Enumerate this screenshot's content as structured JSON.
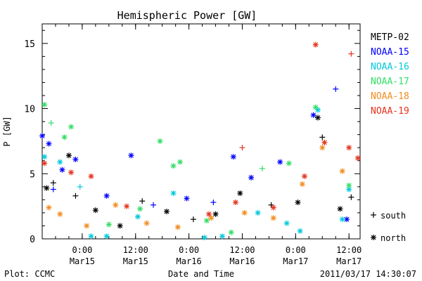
{
  "chart_data": {
    "type": "scatter",
    "title": "Hemispheric Power [GW]",
    "xlabel": "Date and Time",
    "ylabel": "P [GW]",
    "ylim": [
      0,
      16.5
    ],
    "xlim": [
      "2011-03-14 15:00",
      "2011-03-17 14:30"
    ],
    "grid": false,
    "legend_position": "right",
    "y_ticks": [
      0,
      5,
      10,
      15
    ],
    "x_ticks": [
      {
        "x": "2011-03-15 00:00",
        "label_time": "0:00",
        "label_date": "Mar15"
      },
      {
        "x": "2011-03-15 12:00",
        "label_time": "12:00",
        "label_date": "Mar15"
      },
      {
        "x": "2011-03-16 00:00",
        "label_time": "0:00",
        "label_date": "Mar16"
      },
      {
        "x": "2011-03-16 12:00",
        "label_time": "12:00",
        "label_date": "Mar16"
      },
      {
        "x": "2011-03-17 00:00",
        "label_time": "0:00",
        "label_date": "Mar17"
      },
      {
        "x": "2011-03-17 12:00",
        "label_time": "12:00",
        "label_date": "Mar17"
      }
    ],
    "symbol_legend": [
      {
        "symbol": "+",
        "label": "south"
      },
      {
        "symbol": "*",
        "label": "north"
      }
    ],
    "series": [
      {
        "name": "METP-02",
        "color": "#000000",
        "points": [
          {
            "x": "2011-03-14 16:00",
            "y": 3.9,
            "hemi": "north"
          },
          {
            "x": "2011-03-14 17:30",
            "y": 4.3,
            "hemi": "south"
          },
          {
            "x": "2011-03-14 21:00",
            "y": 6.4,
            "hemi": "north"
          },
          {
            "x": "2011-03-14 22:30",
            "y": 3.3,
            "hemi": "south"
          },
          {
            "x": "2011-03-15 03:00",
            "y": 2.2,
            "hemi": "north"
          },
          {
            "x": "2011-03-15 08:30",
            "y": 1.0,
            "hemi": "north"
          },
          {
            "x": "2011-03-15 13:30",
            "y": 2.9,
            "hemi": "south"
          },
          {
            "x": "2011-03-15 19:00",
            "y": 2.1,
            "hemi": "north"
          },
          {
            "x": "2011-03-16 01:00",
            "y": 1.5,
            "hemi": "south"
          },
          {
            "x": "2011-03-16 06:00",
            "y": 1.9,
            "hemi": "north"
          },
          {
            "x": "2011-03-16 11:30",
            "y": 3.5,
            "hemi": "north"
          },
          {
            "x": "2011-03-16 18:30",
            "y": 2.6,
            "hemi": "south"
          },
          {
            "x": "2011-03-17 00:30",
            "y": 2.8,
            "hemi": "north"
          },
          {
            "x": "2011-03-17 05:00",
            "y": 9.3,
            "hemi": "north"
          },
          {
            "x": "2011-03-17 06:00",
            "y": 7.8,
            "hemi": "south"
          },
          {
            "x": "2011-03-17 10:00",
            "y": 2.3,
            "hemi": "north"
          },
          {
            "x": "2011-03-17 12:30",
            "y": 3.2,
            "hemi": "south"
          }
        ]
      },
      {
        "name": "NOAA-15",
        "color": "#0000ff",
        "points": [
          {
            "x": "2011-03-14 15:00",
            "y": 7.9,
            "hemi": "north"
          },
          {
            "x": "2011-03-14 16:30",
            "y": 7.3,
            "hemi": "north"
          },
          {
            "x": "2011-03-14 17:30",
            "y": 3.8,
            "hemi": "south"
          },
          {
            "x": "2011-03-14 19:30",
            "y": 5.3,
            "hemi": "north"
          },
          {
            "x": "2011-03-14 22:30",
            "y": 6.1,
            "hemi": "north"
          },
          {
            "x": "2011-03-15 05:30",
            "y": 3.3,
            "hemi": "north"
          },
          {
            "x": "2011-03-15 11:00",
            "y": 6.4,
            "hemi": "north"
          },
          {
            "x": "2011-03-15 16:00",
            "y": 2.6,
            "hemi": "south"
          },
          {
            "x": "2011-03-15 23:30",
            "y": 3.1,
            "hemi": "north"
          },
          {
            "x": "2011-03-16 05:30",
            "y": 2.8,
            "hemi": "south"
          },
          {
            "x": "2011-03-16 10:00",
            "y": 6.3,
            "hemi": "north"
          },
          {
            "x": "2011-03-16 14:00",
            "y": 4.7,
            "hemi": "north"
          },
          {
            "x": "2011-03-16 20:30",
            "y": 5.9,
            "hemi": "north"
          },
          {
            "x": "2011-03-17 04:00",
            "y": 9.5,
            "hemi": "north"
          },
          {
            "x": "2011-03-17 09:00",
            "y": 11.5,
            "hemi": "south"
          },
          {
            "x": "2011-03-17 11:30",
            "y": 1.5,
            "hemi": "north"
          }
        ]
      },
      {
        "name": "NOAA-16",
        "color": "#00c8dc",
        "points": [
          {
            "x": "2011-03-14 15:30",
            "y": 6.3,
            "hemi": "north"
          },
          {
            "x": "2011-03-14 19:00",
            "y": 5.9,
            "hemi": "north"
          },
          {
            "x": "2011-03-14 23:30",
            "y": 4.0,
            "hemi": "south"
          },
          {
            "x": "2011-03-15 02:00",
            "y": 0.2,
            "hemi": "north"
          },
          {
            "x": "2011-03-15 05:30",
            "y": 0.2,
            "hemi": "north"
          },
          {
            "x": "2011-03-15 12:30",
            "y": 1.7,
            "hemi": "north"
          },
          {
            "x": "2011-03-15 20:30",
            "y": 3.5,
            "hemi": "north"
          },
          {
            "x": "2011-03-16 03:30",
            "y": 0.1,
            "hemi": "north"
          },
          {
            "x": "2011-03-16 07:30",
            "y": 0.2,
            "hemi": "north"
          },
          {
            "x": "2011-03-16 15:30",
            "y": 2.0,
            "hemi": "north"
          },
          {
            "x": "2011-03-16 22:00",
            "y": 1.2,
            "hemi": "north"
          },
          {
            "x": "2011-03-17 01:00",
            "y": 0.6,
            "hemi": "north"
          },
          {
            "x": "2011-03-17 05:00",
            "y": 9.9,
            "hemi": "north"
          },
          {
            "x": "2011-03-17 10:30",
            "y": 1.5,
            "hemi": "north"
          },
          {
            "x": "2011-03-17 12:00",
            "y": 3.8,
            "hemi": "north"
          }
        ]
      },
      {
        "name": "NOAA-17",
        "color": "#33dd66",
        "points": [
          {
            "x": "2011-03-14 15:30",
            "y": 10.3,
            "hemi": "north"
          },
          {
            "x": "2011-03-14 17:00",
            "y": 8.9,
            "hemi": "south"
          },
          {
            "x": "2011-03-14 20:00",
            "y": 7.8,
            "hemi": "north"
          },
          {
            "x": "2011-03-14 21:30",
            "y": 8.6,
            "hemi": "north"
          },
          {
            "x": "2011-03-15 06:00",
            "y": 1.1,
            "hemi": "north"
          },
          {
            "x": "2011-03-15 13:00",
            "y": 2.3,
            "hemi": "north"
          },
          {
            "x": "2011-03-15 17:30",
            "y": 7.5,
            "hemi": "north"
          },
          {
            "x": "2011-03-15 20:30",
            "y": 5.6,
            "hemi": "north"
          },
          {
            "x": "2011-03-15 22:00",
            "y": 5.9,
            "hemi": "north"
          },
          {
            "x": "2011-03-16 04:00",
            "y": 1.4,
            "hemi": "north"
          },
          {
            "x": "2011-03-16 09:30",
            "y": 0.5,
            "hemi": "north"
          },
          {
            "x": "2011-03-16 16:30",
            "y": 5.4,
            "hemi": "south"
          },
          {
            "x": "2011-03-16 22:30",
            "y": 5.8,
            "hemi": "north"
          },
          {
            "x": "2011-03-17 04:30",
            "y": 10.1,
            "hemi": "north"
          },
          {
            "x": "2011-03-17 12:00",
            "y": 4.1,
            "hemi": "north"
          }
        ]
      },
      {
        "name": "NOAA-18",
        "color": "#f08c1e",
        "points": [
          {
            "x": "2011-03-14 16:30",
            "y": 2.4,
            "hemi": "north"
          },
          {
            "x": "2011-03-14 19:00",
            "y": 1.9,
            "hemi": "north"
          },
          {
            "x": "2011-03-15 01:00",
            "y": 1.0,
            "hemi": "north"
          },
          {
            "x": "2011-03-15 07:30",
            "y": 2.6,
            "hemi": "north"
          },
          {
            "x": "2011-03-15 14:30",
            "y": 1.2,
            "hemi": "north"
          },
          {
            "x": "2011-03-15 21:30",
            "y": 0.9,
            "hemi": "north"
          },
          {
            "x": "2011-03-16 05:00",
            "y": 1.6,
            "hemi": "north"
          },
          {
            "x": "2011-03-16 12:30",
            "y": 2.0,
            "hemi": "north"
          },
          {
            "x": "2011-03-16 19:00",
            "y": 1.6,
            "hemi": "north"
          },
          {
            "x": "2011-03-17 01:30",
            "y": 4.2,
            "hemi": "north"
          },
          {
            "x": "2011-03-17 06:00",
            "y": 7.0,
            "hemi": "north"
          },
          {
            "x": "2011-03-17 10:30",
            "y": 5.2,
            "hemi": "north"
          }
        ]
      },
      {
        "name": "NOAA-19",
        "color": "#e6321e",
        "points": [
          {
            "x": "2011-03-14 15:30",
            "y": 5.8,
            "hemi": "north"
          },
          {
            "x": "2011-03-14 21:30",
            "y": 5.1,
            "hemi": "north"
          },
          {
            "x": "2011-03-15 02:00",
            "y": 4.8,
            "hemi": "north"
          },
          {
            "x": "2011-03-15 10:00",
            "y": 2.5,
            "hemi": "north"
          },
          {
            "x": "2011-03-16 04:30",
            "y": 1.9,
            "hemi": "north"
          },
          {
            "x": "2011-03-16 10:30",
            "y": 2.8,
            "hemi": "north"
          },
          {
            "x": "2011-03-16 12:00",
            "y": 7.0,
            "hemi": "south"
          },
          {
            "x": "2011-03-16 19:00",
            "y": 2.4,
            "hemi": "north"
          },
          {
            "x": "2011-03-17 02:00",
            "y": 4.8,
            "hemi": "north"
          },
          {
            "x": "2011-03-17 04:30",
            "y": 14.9,
            "hemi": "north"
          },
          {
            "x": "2011-03-17 06:30",
            "y": 7.4,
            "hemi": "north"
          },
          {
            "x": "2011-03-17 12:00",
            "y": 7.0,
            "hemi": "north"
          },
          {
            "x": "2011-03-17 12:30",
            "y": 14.2,
            "hemi": "south"
          },
          {
            "x": "2011-03-17 14:00",
            "y": 6.2,
            "hemi": "north"
          }
        ]
      }
    ]
  },
  "footer": {
    "left": "Plot: CCMC",
    "right": "2011/03/17 14:30:07"
  }
}
